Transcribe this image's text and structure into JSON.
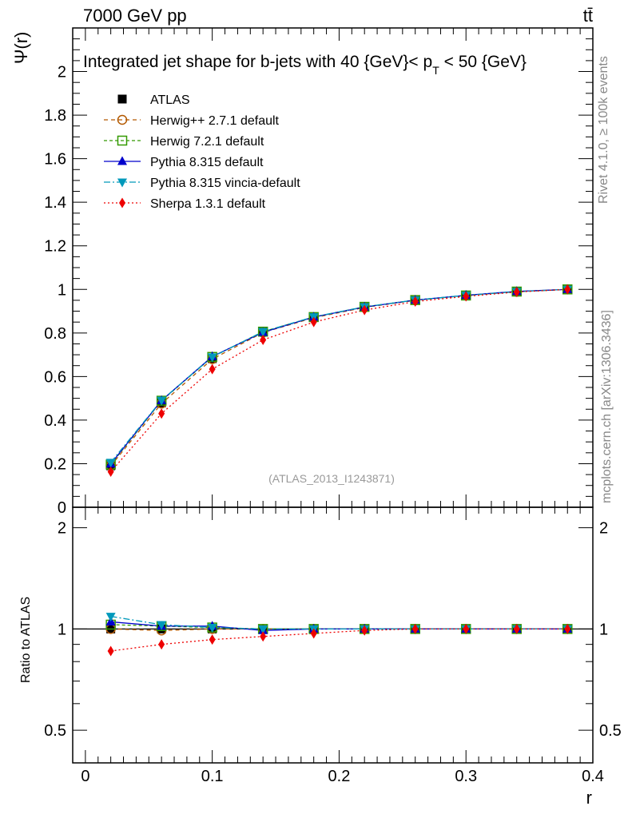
{
  "header": {
    "energy_label": "7000 GeV pp",
    "process_label": "tt̄"
  },
  "side": {
    "rivet_label": "Rivet 4.1.0, ≥ 100k events",
    "url_label": "mcplots.cern.ch [arXiv:1306.3436]"
  },
  "chart_data": {
    "type": "line",
    "title": "Integrated jet shape for b-jets with 40 {GeV}< p_T < 50 {GeV}",
    "title_parts": {
      "main": "Integrated jet shape for b-jets with 40 {GeV}< p",
      "subscript": "T",
      "tail": " < 50 {GeV}"
    },
    "analysis_label": "(ATLAS_2013_I1243871)",
    "xlabel": "r",
    "ylabel": "Ψ(r)",
    "ratio_ylabel": "Ratio to ATLAS",
    "xlim": [
      -0.01,
      0.4
    ],
    "ylim": [
      0,
      2.2
    ],
    "ratio_ylim": [
      0.4,
      2.3
    ],
    "ratio_scale": "log",
    "xticks": [
      {
        "value": 0,
        "label": "0"
      },
      {
        "value": 0.1,
        "label": "0.1"
      },
      {
        "value": 0.2,
        "label": "0.2"
      },
      {
        "value": 0.3,
        "label": "0.3"
      },
      {
        "value": 0.4,
        "label": "0.4"
      }
    ],
    "yticks": [
      {
        "value": 0,
        "label": "0"
      },
      {
        "value": 0.2,
        "label": "0.2"
      },
      {
        "value": 0.4,
        "label": "0.4"
      },
      {
        "value": 0.6,
        "label": "0.6"
      },
      {
        "value": 0.8,
        "label": "0.8"
      },
      {
        "value": 1.0,
        "label": "1"
      },
      {
        "value": 1.2,
        "label": "1.2"
      },
      {
        "value": 1.4,
        "label": "1.4"
      },
      {
        "value": 1.6,
        "label": "1.6"
      },
      {
        "value": 1.8,
        "label": "1.8"
      },
      {
        "value": 2.0,
        "label": "2"
      }
    ],
    "ratio_yticks": [
      {
        "value": 0.5,
        "label": "0.5"
      },
      {
        "value": 1,
        "label": "1"
      },
      {
        "value": 2,
        "label": "2"
      }
    ],
    "legend_position": "top-left",
    "x": [
      0.02,
      0.06,
      0.1,
      0.14,
      0.18,
      0.22,
      0.26,
      0.3,
      0.34,
      0.38
    ],
    "data": {
      "name": "ATLAS",
      "values": [
        0.19,
        0.479,
        0.682,
        0.805,
        0.873,
        0.918,
        0.95,
        0.971,
        0.989,
        1.0
      ]
    },
    "series": [
      {
        "name": "Herwig++ 2.7.1 default",
        "color": "#b35900",
        "marker": "circle-open",
        "dash": "5,4",
        "values": [
          0.19,
          0.476,
          0.68,
          0.802,
          0.87,
          0.917,
          0.95,
          0.972,
          0.989,
          1.0
        ],
        "ratio": [
          1.0,
          0.99,
          1.0,
          1.0,
          1.0,
          1.0,
          1.0,
          1.0,
          1.0,
          1.0
        ]
      },
      {
        "name": "Herwig 7.2.1 default",
        "color": "#339900",
        "marker": "square-open",
        "dash": "4,3",
        "values": [
          0.196,
          0.489,
          0.69,
          0.806,
          0.873,
          0.92,
          0.951,
          0.972,
          0.99,
          1.0
        ],
        "ratio": [
          1.03,
          1.02,
          1.01,
          1.0,
          1.0,
          1.0,
          1.0,
          1.0,
          1.0,
          1.0
        ]
      },
      {
        "name": "Pythia 8.315 default",
        "color": "#0000cc",
        "marker": "triangle-up",
        "dash": "",
        "values": [
          0.199,
          0.49,
          0.692,
          0.803,
          0.873,
          0.919,
          0.951,
          0.973,
          0.991,
          1.0
        ],
        "ratio": [
          1.05,
          1.02,
          1.02,
          0.99,
          1.0,
          1.0,
          1.0,
          1.0,
          1.0,
          1.0
        ]
      },
      {
        "name": "Pythia 8.315 vincia-default",
        "color": "#0099bb",
        "marker": "triangle-down",
        "dash": "8,3,2,3",
        "values": [
          0.206,
          0.491,
          0.69,
          0.806,
          0.874,
          0.92,
          0.951,
          0.973,
          0.99,
          1.0
        ],
        "ratio": [
          1.09,
          1.03,
          1.01,
          1.0,
          1.0,
          1.0,
          1.0,
          1.0,
          1.0,
          1.0
        ]
      },
      {
        "name": "Sherpa 1.3.1 default",
        "color": "#ee0000",
        "marker": "diamond",
        "dash": "2,3",
        "values": [
          0.163,
          0.43,
          0.634,
          0.768,
          0.85,
          0.905,
          0.944,
          0.968,
          0.988,
          1.0
        ],
        "ratio": [
          0.86,
          0.9,
          0.93,
          0.95,
          0.97,
          0.99,
          1.0,
          1.0,
          1.0,
          1.0
        ]
      }
    ]
  }
}
